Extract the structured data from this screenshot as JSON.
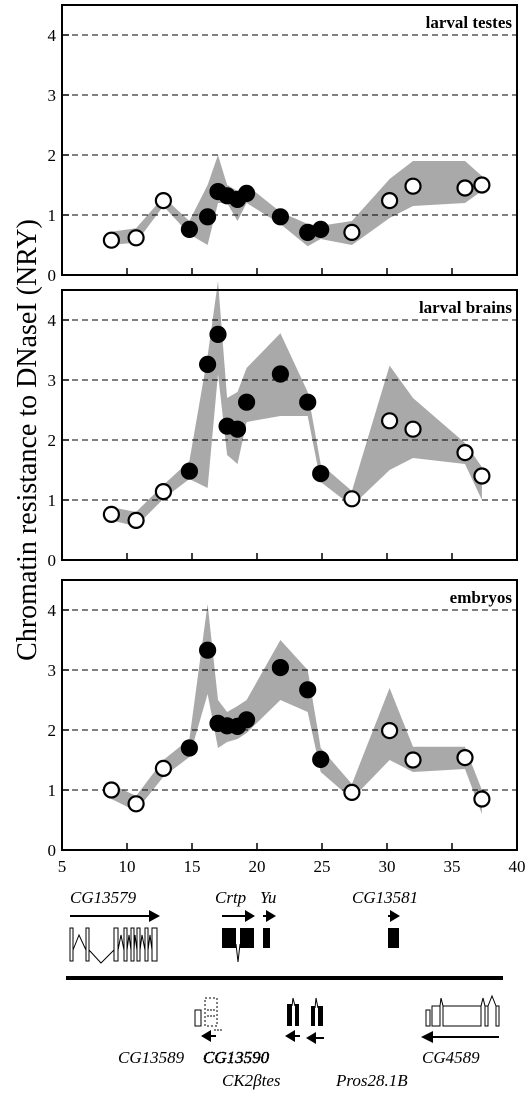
{
  "chart_data": {
    "type": "scatter",
    "ylabel": "Chromatin resistance to DNaseI (NRY)",
    "xlabel": "",
    "xlim": [
      5,
      40
    ],
    "ylim": [
      0,
      4.5
    ],
    "xticks": [
      "5",
      "10",
      "15",
      "20",
      "25",
      "30",
      "35",
      "40"
    ],
    "yticks": [
      "0",
      "1",
      "2",
      "3",
      "4"
    ],
    "grid": "dashed horizontal at 1,2,3,4",
    "band_color": "#a9a9a9",
    "panels": [
      {
        "title": "larval testes",
        "points": [
          {
            "x": 8.8,
            "y": 0.58,
            "filled": false
          },
          {
            "x": 10.7,
            "y": 0.62,
            "filled": false
          },
          {
            "x": 12.8,
            "y": 1.24,
            "filled": false
          },
          {
            "x": 14.8,
            "y": 0.76,
            "filled": true
          },
          {
            "x": 16.2,
            "y": 0.97,
            "filled": true
          },
          {
            "x": 17.0,
            "y": 1.39,
            "filled": true
          },
          {
            "x": 17.7,
            "y": 1.32,
            "filled": true
          },
          {
            "x": 18.5,
            "y": 1.26,
            "filled": true
          },
          {
            "x": 19.2,
            "y": 1.36,
            "filled": true
          },
          {
            "x": 21.8,
            "y": 0.97,
            "filled": true
          },
          {
            "x": 23.9,
            "y": 0.71,
            "filled": true
          },
          {
            "x": 24.9,
            "y": 0.76,
            "filled": true
          },
          {
            "x": 27.3,
            "y": 0.71,
            "filled": false
          },
          {
            "x": 30.2,
            "y": 1.24,
            "filled": false
          },
          {
            "x": 32.0,
            "y": 1.48,
            "filled": false
          },
          {
            "x": 36.0,
            "y": 1.45,
            "filled": false
          },
          {
            "x": 37.3,
            "y": 1.5,
            "filled": false
          }
        ],
        "band_upper": [
          0.72,
          0.78,
          1.3,
          0.9,
          1.5,
          2.0,
          1.5,
          1.4,
          1.5,
          1.05,
          0.85,
          0.82,
          0.9,
          1.6,
          1.9,
          1.9,
          1.65
        ],
        "band_lower": [
          0.5,
          0.54,
          1.15,
          0.68,
          0.5,
          1.2,
          1.2,
          0.9,
          1.2,
          0.85,
          0.48,
          0.6,
          0.5,
          0.95,
          1.15,
          1.2,
          1.4
        ]
      },
      {
        "title": "larval brains",
        "points": [
          {
            "x": 8.8,
            "y": 0.76,
            "filled": false
          },
          {
            "x": 10.7,
            "y": 0.66,
            "filled": false
          },
          {
            "x": 12.8,
            "y": 1.14,
            "filled": false
          },
          {
            "x": 14.8,
            "y": 1.48,
            "filled": true
          },
          {
            "x": 16.2,
            "y": 3.26,
            "filled": true
          },
          {
            "x": 17.0,
            "y": 3.76,
            "filled": true
          },
          {
            "x": 17.7,
            "y": 2.23,
            "filled": true
          },
          {
            "x": 18.5,
            "y": 2.18,
            "filled": true
          },
          {
            "x": 19.2,
            "y": 2.63,
            "filled": true
          },
          {
            "x": 21.8,
            "y": 3.1,
            "filled": true
          },
          {
            "x": 23.9,
            "y": 2.63,
            "filled": true
          },
          {
            "x": 24.9,
            "y": 1.44,
            "filled": true
          },
          {
            "x": 27.3,
            "y": 1.02,
            "filled": false
          },
          {
            "x": 30.2,
            "y": 2.32,
            "filled": false
          },
          {
            "x": 32.0,
            "y": 2.18,
            "filled": false
          },
          {
            "x": 36.0,
            "y": 1.79,
            "filled": false
          },
          {
            "x": 37.3,
            "y": 1.4,
            "filled": false
          }
        ],
        "band_upper": [
          0.88,
          0.8,
          1.25,
          1.65,
          3.4,
          4.65,
          2.7,
          2.8,
          3.2,
          3.78,
          2.8,
          1.6,
          1.15,
          3.24,
          2.7,
          1.95,
          1.55
        ],
        "band_lower": [
          0.66,
          0.56,
          1.02,
          1.35,
          1.2,
          3.1,
          1.75,
          1.6,
          2.3,
          2.4,
          2.4,
          1.3,
          0.9,
          1.5,
          1.7,
          1.6,
          1.0
        ]
      },
      {
        "title": "embryos",
        "points": [
          {
            "x": 8.8,
            "y": 1.0,
            "filled": false
          },
          {
            "x": 10.7,
            "y": 0.77,
            "filled": false
          },
          {
            "x": 12.8,
            "y": 1.36,
            "filled": false
          },
          {
            "x": 14.8,
            "y": 1.7,
            "filled": true
          },
          {
            "x": 16.2,
            "y": 3.33,
            "filled": true
          },
          {
            "x": 17.0,
            "y": 2.11,
            "filled": true
          },
          {
            "x": 17.7,
            "y": 2.07,
            "filled": true
          },
          {
            "x": 18.5,
            "y": 2.06,
            "filled": true
          },
          {
            "x": 19.2,
            "y": 2.17,
            "filled": true
          },
          {
            "x": 21.8,
            "y": 3.04,
            "filled": true
          },
          {
            "x": 23.9,
            "y": 2.67,
            "filled": true
          },
          {
            "x": 24.9,
            "y": 1.51,
            "filled": true
          },
          {
            "x": 27.3,
            "y": 0.96,
            "filled": false
          },
          {
            "x": 30.2,
            "y": 1.99,
            "filled": false
          },
          {
            "x": 32.0,
            "y": 1.5,
            "filled": false
          },
          {
            "x": 36.0,
            "y": 1.54,
            "filled": false
          },
          {
            "x": 37.3,
            "y": 0.85,
            "filled": false
          }
        ],
        "band_upper": [
          1.1,
          0.9,
          1.5,
          1.85,
          4.1,
          2.5,
          2.3,
          2.4,
          2.5,
          3.5,
          3.0,
          1.7,
          1.1,
          2.7,
          1.72,
          1.72,
          1.0
        ],
        "band_lower": [
          0.85,
          0.65,
          1.22,
          1.55,
          2.6,
          1.7,
          1.8,
          1.85,
          1.95,
          2.5,
          2.3,
          1.3,
          0.85,
          1.5,
          1.3,
          1.35,
          0.6
        ]
      }
    ],
    "gene_map": {
      "top_genes": [
        "CG13579",
        "Crtp",
        "Yu",
        "CG13581"
      ],
      "bottom_genes": [
        "CG13589",
        "CG13590",
        "CK2βtes",
        "Pros28.1B",
        "CG4589"
      ]
    }
  }
}
